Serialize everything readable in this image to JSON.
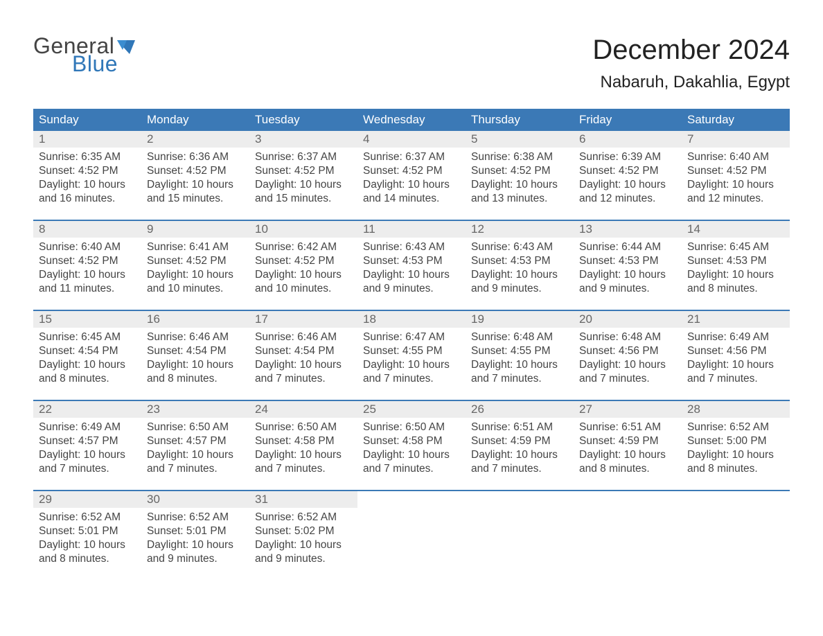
{
  "logo": {
    "text_general": "General",
    "text_blue": "Blue",
    "flag_color": "#3077b8"
  },
  "title": "December 2024",
  "location": "Nabaruh, Dakahlia, Egypt",
  "colors": {
    "header_bg": "#3b79b6",
    "header_text": "#ffffff",
    "daynum_bg": "#ededed",
    "daynum_text": "#666666",
    "body_text": "#444444",
    "week_divider": "#3b79b6",
    "page_bg": "#ffffff"
  },
  "typography": {
    "title_fontsize": 40,
    "location_fontsize": 24,
    "header_fontsize": 17,
    "daynum_fontsize": 17,
    "body_fontsize": 15.5,
    "logo_fontsize": 32
  },
  "layout": {
    "columns": 7,
    "rows": 5,
    "first_day_column": 0
  },
  "day_headers": [
    "Sunday",
    "Monday",
    "Tuesday",
    "Wednesday",
    "Thursday",
    "Friday",
    "Saturday"
  ],
  "labels": {
    "sunrise_prefix": "Sunrise: ",
    "sunset_prefix": "Sunset: ",
    "daylight_prefix": "Daylight: "
  },
  "days": [
    {
      "n": 1,
      "sunrise": "6:35 AM",
      "sunset": "4:52 PM",
      "daylight": "10 hours and 16 minutes."
    },
    {
      "n": 2,
      "sunrise": "6:36 AM",
      "sunset": "4:52 PM",
      "daylight": "10 hours and 15 minutes."
    },
    {
      "n": 3,
      "sunrise": "6:37 AM",
      "sunset": "4:52 PM",
      "daylight": "10 hours and 15 minutes."
    },
    {
      "n": 4,
      "sunrise": "6:37 AM",
      "sunset": "4:52 PM",
      "daylight": "10 hours and 14 minutes."
    },
    {
      "n": 5,
      "sunrise": "6:38 AM",
      "sunset": "4:52 PM",
      "daylight": "10 hours and 13 minutes."
    },
    {
      "n": 6,
      "sunrise": "6:39 AM",
      "sunset": "4:52 PM",
      "daylight": "10 hours and 12 minutes."
    },
    {
      "n": 7,
      "sunrise": "6:40 AM",
      "sunset": "4:52 PM",
      "daylight": "10 hours and 12 minutes."
    },
    {
      "n": 8,
      "sunrise": "6:40 AM",
      "sunset": "4:52 PM",
      "daylight": "10 hours and 11 minutes."
    },
    {
      "n": 9,
      "sunrise": "6:41 AM",
      "sunset": "4:52 PM",
      "daylight": "10 hours and 10 minutes."
    },
    {
      "n": 10,
      "sunrise": "6:42 AM",
      "sunset": "4:52 PM",
      "daylight": "10 hours and 10 minutes."
    },
    {
      "n": 11,
      "sunrise": "6:43 AM",
      "sunset": "4:53 PM",
      "daylight": "10 hours and 9 minutes."
    },
    {
      "n": 12,
      "sunrise": "6:43 AM",
      "sunset": "4:53 PM",
      "daylight": "10 hours and 9 minutes."
    },
    {
      "n": 13,
      "sunrise": "6:44 AM",
      "sunset": "4:53 PM",
      "daylight": "10 hours and 9 minutes."
    },
    {
      "n": 14,
      "sunrise": "6:45 AM",
      "sunset": "4:53 PM",
      "daylight": "10 hours and 8 minutes."
    },
    {
      "n": 15,
      "sunrise": "6:45 AM",
      "sunset": "4:54 PM",
      "daylight": "10 hours and 8 minutes."
    },
    {
      "n": 16,
      "sunrise": "6:46 AM",
      "sunset": "4:54 PM",
      "daylight": "10 hours and 8 minutes."
    },
    {
      "n": 17,
      "sunrise": "6:46 AM",
      "sunset": "4:54 PM",
      "daylight": "10 hours and 7 minutes."
    },
    {
      "n": 18,
      "sunrise": "6:47 AM",
      "sunset": "4:55 PM",
      "daylight": "10 hours and 7 minutes."
    },
    {
      "n": 19,
      "sunrise": "6:48 AM",
      "sunset": "4:55 PM",
      "daylight": "10 hours and 7 minutes."
    },
    {
      "n": 20,
      "sunrise": "6:48 AM",
      "sunset": "4:56 PM",
      "daylight": "10 hours and 7 minutes."
    },
    {
      "n": 21,
      "sunrise": "6:49 AM",
      "sunset": "4:56 PM",
      "daylight": "10 hours and 7 minutes."
    },
    {
      "n": 22,
      "sunrise": "6:49 AM",
      "sunset": "4:57 PM",
      "daylight": "10 hours and 7 minutes."
    },
    {
      "n": 23,
      "sunrise": "6:50 AM",
      "sunset": "4:57 PM",
      "daylight": "10 hours and 7 minutes."
    },
    {
      "n": 24,
      "sunrise": "6:50 AM",
      "sunset": "4:58 PM",
      "daylight": "10 hours and 7 minutes."
    },
    {
      "n": 25,
      "sunrise": "6:50 AM",
      "sunset": "4:58 PM",
      "daylight": "10 hours and 7 minutes."
    },
    {
      "n": 26,
      "sunrise": "6:51 AM",
      "sunset": "4:59 PM",
      "daylight": "10 hours and 7 minutes."
    },
    {
      "n": 27,
      "sunrise": "6:51 AM",
      "sunset": "4:59 PM",
      "daylight": "10 hours and 8 minutes."
    },
    {
      "n": 28,
      "sunrise": "6:52 AM",
      "sunset": "5:00 PM",
      "daylight": "10 hours and 8 minutes."
    },
    {
      "n": 29,
      "sunrise": "6:52 AM",
      "sunset": "5:01 PM",
      "daylight": "10 hours and 8 minutes."
    },
    {
      "n": 30,
      "sunrise": "6:52 AM",
      "sunset": "5:01 PM",
      "daylight": "10 hours and 9 minutes."
    },
    {
      "n": 31,
      "sunrise": "6:52 AM",
      "sunset": "5:02 PM",
      "daylight": "10 hours and 9 minutes."
    }
  ]
}
